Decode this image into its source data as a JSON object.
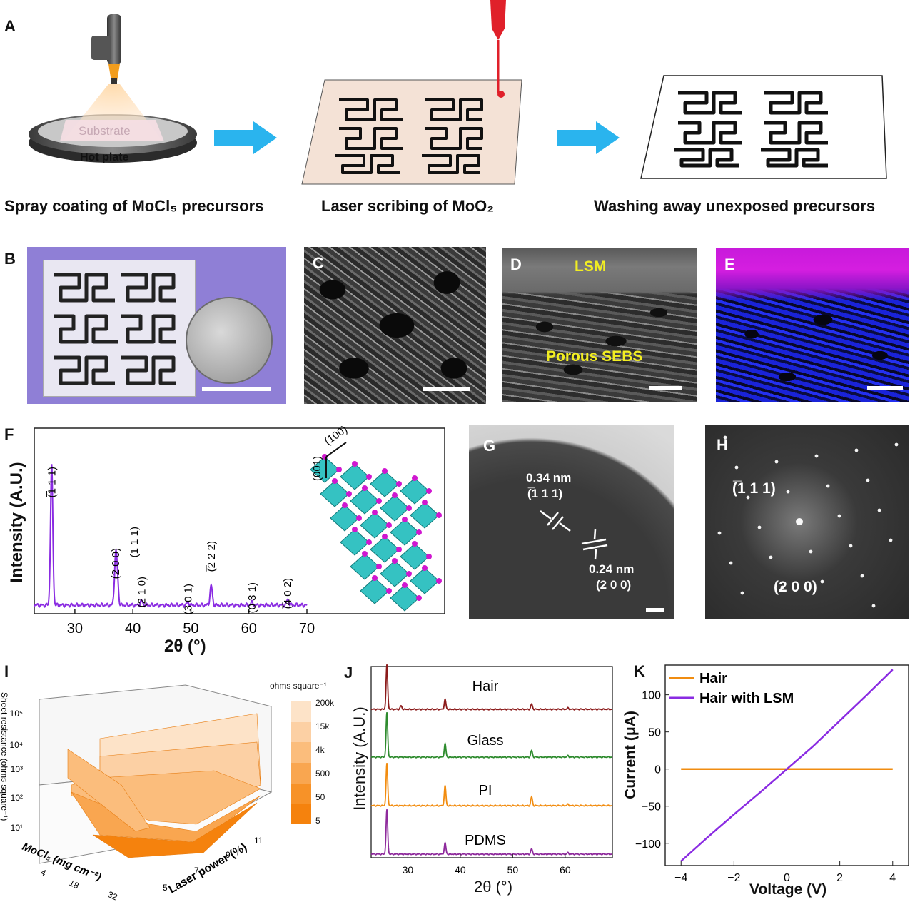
{
  "panels": {
    "A": "A",
    "B": "B",
    "C": "C",
    "D": "D",
    "E": "E",
    "F": "F",
    "G": "G",
    "H": "H",
    "I": "I",
    "J": "J",
    "K": "K"
  },
  "panelA": {
    "substrate_label": "Substrate",
    "hotplate_label": "Hot plate",
    "step1_caption": "Spray coating of MoCl₅ precursors",
    "step2_caption": "Laser scribing of  MoO₂",
    "step3_caption": "Washing away unexposed precursors",
    "arrow_color": "#2ab4ee",
    "laser_color": "#e0202a"
  },
  "panelD": {
    "top_label": "LSM",
    "bottom_label": "Porous SEBS",
    "label_color": "#f2ee22"
  },
  "panelE": {
    "top_color": "#d51ee0",
    "bottom_color": "#1a23d8"
  },
  "panelF": {
    "chart_data": {
      "type": "line",
      "xlabel": "2θ (°)",
      "ylabel": "Intensity (A.U.)",
      "xlim": [
        23,
        70
      ],
      "x_ticks": [
        "30",
        "40",
        "50",
        "60",
        "70"
      ],
      "series_color": "#8a2be2",
      "peaks": [
        {
          "x": 26.0,
          "rel_intensity": 1.0,
          "label": "(̅1 1 1)"
        },
        {
          "x": 37.0,
          "rel_intensity": 0.3,
          "label": "(2 0 0)"
        },
        {
          "x": 37.3,
          "rel_intensity": 0.2,
          "label": "(1 1 1)"
        },
        {
          "x": 41.5,
          "rel_intensity": 0.03,
          "label": "(2 1 0)"
        },
        {
          "x": 49.5,
          "rel_intensity": 0.02,
          "label": "(̅3 0 1)"
        },
        {
          "x": 53.5,
          "rel_intensity": 0.14,
          "label": "(̅2 2 2)"
        },
        {
          "x": 60.5,
          "rel_intensity": 0.02,
          "label": "(0 3 1)"
        },
        {
          "x": 66.7,
          "rel_intensity": 0.04,
          "label": "(̅4 0 2)"
        }
      ]
    },
    "axis_100": "(100)",
    "axis_001": "(001)"
  },
  "panelG": {
    "d1": "0.34 nm",
    "d1_plane": "(̅1 1 1)",
    "d2": "0.24 nm",
    "d2_plane": "(2 0 0)"
  },
  "panelH": {
    "spot1": "(̅1 1 1)",
    "spot2": "(2 0 0)"
  },
  "panelI": {
    "zlabel": "Sheet resistance (ohms square⁻¹)",
    "xlabel": "MoCl₅ (mg cm⁻²)",
    "ylabel": "Laser power (%)",
    "z_ticks": [
      "10⁵",
      "10⁴",
      "10³",
      "10²",
      "10¹"
    ],
    "x_ticks": [
      "4",
      "18",
      "32"
    ],
    "y_ticks": [
      "5",
      "7",
      "9",
      "11"
    ],
    "colorbar_title": "ohms square⁻¹",
    "colorbar_labels": [
      "200k",
      "15k",
      "4k",
      "500",
      "50",
      "5"
    ],
    "colorbar_colors": [
      "#fde3c8",
      "#fcd0a4",
      "#fbbd7c",
      "#f9a650",
      "#f79228",
      "#f5820d"
    ]
  },
  "panelJ": {
    "chart_data": {
      "type": "line",
      "xlabel": "2θ (°)",
      "ylabel": "Intensity (A.U.)",
      "xlim": [
        23,
        69
      ],
      "x_ticks": [
        "30",
        "40",
        "50",
        "60"
      ],
      "series": [
        {
          "name": "Hair",
          "color": "#8b1a1a",
          "peaks": [
            [
              26.0,
              1.0
            ],
            [
              28.7,
              0.08
            ],
            [
              37.1,
              0.22
            ],
            [
              53.6,
              0.12
            ],
            [
              60.5,
              0.03
            ]
          ]
        },
        {
          "name": "Glass",
          "color": "#2e8b2e",
          "peaks": [
            [
              26.0,
              1.0
            ],
            [
              37.1,
              0.3
            ],
            [
              53.6,
              0.15
            ],
            [
              60.5,
              0.03
            ]
          ]
        },
        {
          "name": "PI",
          "color": "#f28c0f",
          "peaks": [
            [
              26.0,
              0.95
            ],
            [
              37.1,
              0.45
            ],
            [
              53.6,
              0.2
            ],
            [
              60.5,
              0.03
            ]
          ]
        },
        {
          "name": "PDMS",
          "color": "#8e2a9c",
          "peaks": [
            [
              26.0,
              1.0
            ],
            [
              37.1,
              0.25
            ],
            [
              53.6,
              0.12
            ],
            [
              60.5,
              0.03
            ]
          ]
        }
      ]
    }
  },
  "panelK": {
    "chart_data": {
      "type": "line",
      "xlabel": "Voltage (V)",
      "ylabel": "Current (μA)",
      "xlim": [
        -4.6,
        4.6
      ],
      "ylim": [
        -130,
        140
      ],
      "x_ticks": [
        -4,
        -2,
        0,
        2,
        4
      ],
      "y_ticks": [
        100,
        50,
        0,
        -50,
        -100
      ],
      "series": [
        {
          "name": "Hair",
          "color": "#f08c10",
          "x": [
            -4,
            4
          ],
          "y": [
            0,
            0
          ]
        },
        {
          "name": "Hair with LSM",
          "color": "#8a2be2",
          "x": [
            -4,
            -3,
            -2,
            -1,
            0,
            1,
            2,
            3,
            4
          ],
          "y": [
            -124,
            -92,
            -61,
            -31,
            0,
            31,
            65,
            99,
            134
          ]
        }
      ]
    }
  }
}
